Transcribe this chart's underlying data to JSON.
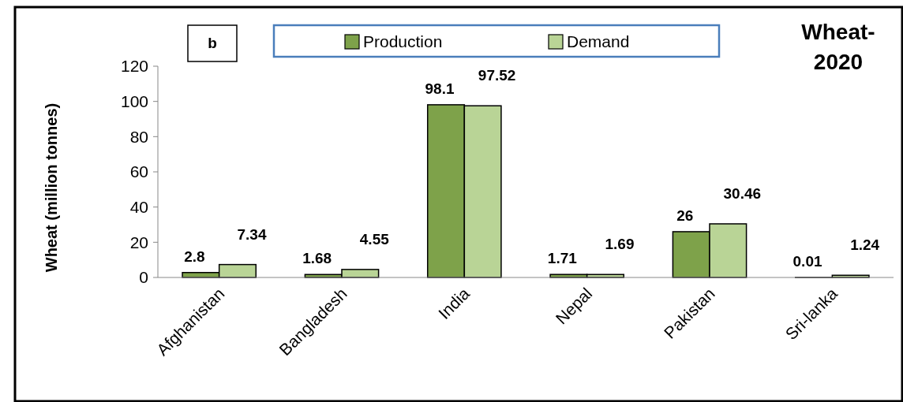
{
  "chart_data": {
    "type": "bar",
    "title": "Wheat-2020",
    "ylabel": "Wheat (million tonnes)",
    "annotations": [
      "b"
    ],
    "categories": [
      "Afghanistan",
      "Bangladesh",
      "India",
      "Nepal",
      "Pakistan",
      "Sri-lanka"
    ],
    "series": [
      {
        "name": "Production",
        "color": "#7ea24a",
        "values": [
          2.8,
          1.68,
          98.1,
          1.71,
          26,
          0.01
        ]
      },
      {
        "name": "Demand",
        "color": "#b9d496",
        "values": [
          7.34,
          4.55,
          97.52,
          1.69,
          30.46,
          1.24
        ]
      }
    ],
    "ylim": [
      0,
      120
    ],
    "yticks": [
      0,
      20,
      40,
      60,
      80,
      100,
      120
    ],
    "grid": false,
    "legend": "top",
    "data_labels": true
  }
}
